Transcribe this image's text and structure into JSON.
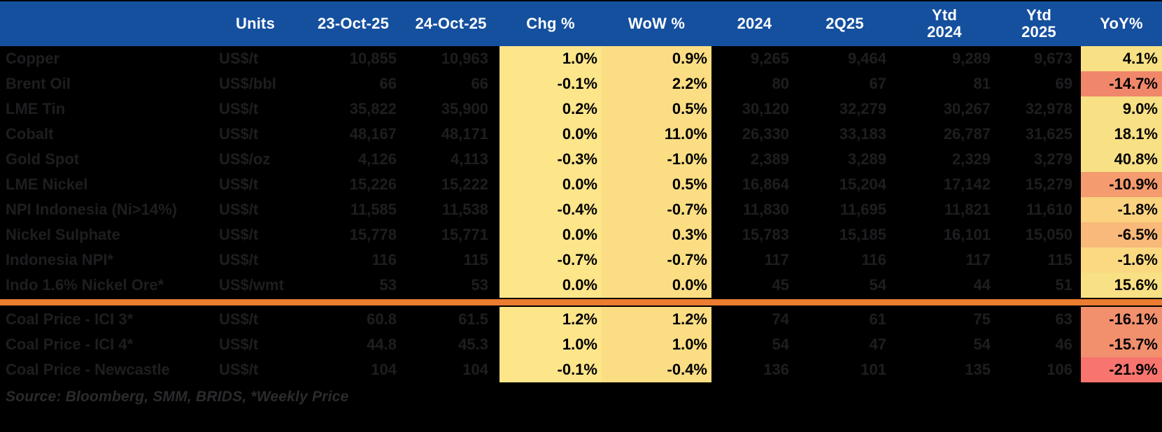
{
  "table": {
    "header": {
      "columns": [
        {
          "id": "name",
          "line1": ""
        },
        {
          "id": "units",
          "line1": "Units"
        },
        {
          "id": "23-oct-25",
          "line1": "23-Oct-25"
        },
        {
          "id": "24-oct-25",
          "line1": "24-Oct-25"
        },
        {
          "id": "chg-pct",
          "line1": "Chg %"
        },
        {
          "id": "wow-pct",
          "line1": "WoW %"
        },
        {
          "id": "2024",
          "line1": "2024"
        },
        {
          "id": "2q25",
          "line1": "2Q25"
        },
        {
          "id": "ytd-2024",
          "line1": "Ytd",
          "line2": "2024"
        },
        {
          "id": "ytd-2025",
          "line1": "Ytd",
          "line2": "2025"
        },
        {
          "id": "yoy-pct",
          "line1": "YoY%"
        }
      ]
    },
    "groups": [
      {
        "name": "metals-and-energy",
        "rows": [
          {
            "name": "Copper",
            "units": "US$/t",
            "d23": "10,855",
            "d24": "10,963",
            "chg": "1.0%",
            "wow": "0.9%",
            "y2024": "9,265",
            "q225": "9,464",
            "ytd24": "9,289",
            "ytd25": "9,673",
            "yoy": "4.1%",
            "yoy_bg": "#F8E084"
          },
          {
            "name": "Brent Oil",
            "units": "US$/bbl",
            "d23": "66",
            "d24": "66",
            "chg": "-0.1%",
            "wow": "2.2%",
            "y2024": "80",
            "q225": "67",
            "ytd24": "81",
            "ytd25": "69",
            "yoy": "-14.7%",
            "yoy_bg": "#F0876B"
          },
          {
            "name": "LME Tin",
            "units": "US$/t",
            "d23": "35,822",
            "d24": "35,900",
            "chg": "0.2%",
            "wow": "0.5%",
            "y2024": "30,120",
            "q225": "32,279",
            "ytd24": "30,267",
            "ytd25": "32,978",
            "yoy": "9.0%",
            "yoy_bg": "#F8E084"
          },
          {
            "name": "Cobalt",
            "units": "US$/t",
            "d23": "48,167",
            "d24": "48,171",
            "chg": "0.0%",
            "wow": "11.0%",
            "y2024": "26,330",
            "q225": "33,183",
            "ytd24": "26,787",
            "ytd25": "31,625",
            "yoy": "18.1%",
            "yoy_bg": "#F8E084"
          },
          {
            "name": "Gold Spot",
            "units": "US$/oz",
            "d23": "4,126",
            "d24": "4,113",
            "chg": "-0.3%",
            "wow": "-1.0%",
            "y2024": "2,389",
            "q225": "3,289",
            "ytd24": "2,329",
            "ytd25": "3,279",
            "yoy": "40.8%",
            "yoy_bg": "#F8E084"
          },
          {
            "name": "LME Nickel",
            "units": "US$/t",
            "d23": "15,226",
            "d24": "15,222",
            "chg": "0.0%",
            "wow": "0.5%",
            "y2024": "16,864",
            "q225": "15,204",
            "ytd24": "17,142",
            "ytd25": "15,279",
            "yoy": "-10.9%",
            "yoy_bg": "#F49B6F"
          },
          {
            "name": "NPI Indonesia (Ni>14%)",
            "units": "US$/t",
            "d23": "11,585",
            "d24": "11,538",
            "chg": "-0.4%",
            "wow": "-0.7%",
            "y2024": "11,830",
            "q225": "11,695",
            "ytd24": "11,821",
            "ytd25": "11,610",
            "yoy": "-1.8%",
            "yoy_bg": "#FBD27F"
          },
          {
            "name": "Nickel Sulphate",
            "units": "US$/t",
            "d23": "15,778",
            "d24": "15,771",
            "chg": "0.0%",
            "wow": "0.3%",
            "y2024": "15,783",
            "q225": "15,185",
            "ytd24": "16,101",
            "ytd25": "15,050",
            "yoy": "-6.5%",
            "yoy_bg": "#F8B97A"
          },
          {
            "name": "Indonesia NPI*",
            "units": "US$/t",
            "d23": "116",
            "d24": "115",
            "chg": "-0.7%",
            "wow": "-0.7%",
            "y2024": "117",
            "q225": "116",
            "ytd24": "117",
            "ytd25": "115",
            "yoy": "-1.6%",
            "yoy_bg": "#FAD981"
          },
          {
            "name": "Indo 1.6% Nickel Ore*",
            "units": "US$/wmt",
            "d23": "53",
            "d24": "53",
            "chg": "0.0%",
            "wow": "0.0%",
            "y2024": "45",
            "q225": "54",
            "ytd24": "44",
            "ytd25": "51",
            "yoy": "15.6%",
            "yoy_bg": "#F8E084"
          }
        ]
      },
      {
        "name": "coal",
        "rows": [
          {
            "name": "Coal Price - ICI 3*",
            "units": "US$/t",
            "d23": "60.8",
            "d24": "61.5",
            "chg": "1.2%",
            "wow": "1.2%",
            "y2024": "74",
            "q225": "61",
            "ytd24": "75",
            "ytd25": "63",
            "yoy": "-16.1%",
            "yoy_bg": "#F2906E"
          },
          {
            "name": "Coal Price - ICI 4*",
            "units": "US$/t",
            "d23": "44.8",
            "d24": "45.3",
            "chg": "1.0%",
            "wow": "1.0%",
            "y2024": "54",
            "q225": "47",
            "ytd24": "54",
            "ytd25": "46",
            "yoy": "-15.7%",
            "yoy_bg": "#F2906E"
          },
          {
            "name": "Coal Price - Newcastle",
            "units": "US$/t",
            "d23": "104",
            "d24": "104",
            "chg": "-0.1%",
            "wow": "-0.4%",
            "y2024": "136",
            "q225": "101",
            "ytd24": "135",
            "ytd25": "106",
            "yoy": "-21.9%",
            "yoy_bg": "#F7756E"
          }
        ]
      }
    ],
    "footer": {
      "source": "Source: Bloomberg, SMM, BRIDS, *Weekly Price"
    }
  },
  "colors": {
    "header_bg": "#15509F",
    "divider_orange": "#EC7C30",
    "chg_col_bg": "#FDE58A",
    "wow_col_bg": "#FBDE83",
    "yoy_positive_yellow": "#F8E084",
    "yoy_negative_red": "#F7756E",
    "page_bg": "#000000",
    "header_text": "#FFFFFF",
    "row_text": "#1E1E21"
  }
}
